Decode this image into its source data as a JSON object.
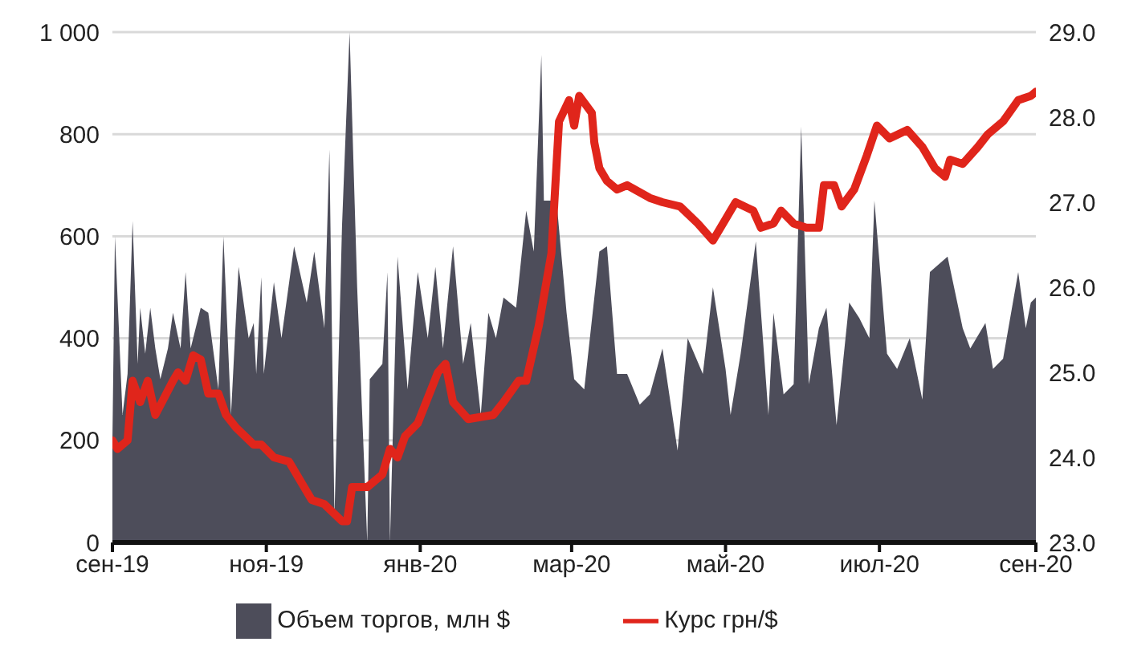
{
  "chart_data": {
    "type": "area",
    "xlim": [
      "2019-09-01",
      "2020-09-01"
    ],
    "xticks": [
      {
        "value": "2019-09-01",
        "label": "сен-19"
      },
      {
        "value": "2019-11-01",
        "label": "ноя-19"
      },
      {
        "value": "2020-01-01",
        "label": "янв-20"
      },
      {
        "value": "2020-03-01",
        "label": "мар-20"
      },
      {
        "value": "2020-05-01",
        "label": "май-20"
      },
      {
        "value": "2020-07-01",
        "label": "июл-20"
      },
      {
        "value": "2020-09-01",
        "label": "сен-20"
      }
    ],
    "ylim": [
      0,
      1000
    ],
    "yticks": [
      0,
      200,
      400,
      600,
      800,
      {
        "value": 1000,
        "label": "1 000"
      }
    ],
    "y2lim": [
      23,
      29
    ],
    "y2ticks": [
      {
        "value": 23,
        "label": "23.0"
      },
      {
        "value": 24,
        "label": "24.0"
      },
      {
        "value": 25,
        "label": "25.0"
      },
      {
        "value": 26,
        "label": "26.0"
      },
      {
        "value": 27,
        "label": "27.0"
      },
      {
        "value": 28,
        "label": "28.0"
      },
      {
        "value": 29,
        "label": "29.0"
      }
    ],
    "grid": "y",
    "legend": "bottom",
    "series": [
      {
        "name": "Объем торгов, млн $",
        "color": "#4d4d5a",
        "x": [
          "2019-09-01",
          "2019-09-02",
          "2019-09-05",
          "2019-09-07",
          "2019-09-09",
          "2019-09-11",
          "2019-09-12",
          "2019-09-14",
          "2019-09-16",
          "2019-09-18",
          "2019-09-20",
          "2019-09-23",
          "2019-09-25",
          "2019-09-28",
          "2019-09-30",
          "2019-10-02",
          "2019-10-06",
          "2019-10-09",
          "2019-10-13",
          "2019-10-15",
          "2019-10-18",
          "2019-10-21",
          "2019-10-25",
          "2019-10-27",
          "2019-10-28",
          "2019-10-30",
          "2019-10-31",
          "2019-11-04",
          "2019-11-07",
          "2019-11-12",
          "2019-11-17",
          "2019-11-20",
          "2019-11-24",
          "2019-11-26",
          "2019-11-28",
          "2019-12-01",
          "2019-12-04",
          "2019-12-07",
          "2019-12-11",
          "2019-12-12",
          "2019-12-17",
          "2019-12-19",
          "2019-12-20",
          "2019-12-23",
          "2019-12-27",
          "2019-12-31",
          "2020-01-04",
          "2020-01-07",
          "2020-01-10",
          "2020-01-14",
          "2020-01-18",
          "2020-01-21",
          "2020-01-25",
          "2020-01-28",
          "2020-01-31",
          "2020-02-03",
          "2020-02-08",
          "2020-02-12",
          "2020-02-15",
          "2020-02-18",
          "2020-02-19",
          "2020-02-24",
          "2020-02-28",
          "2020-03-02",
          "2020-03-06",
          "2020-03-12",
          "2020-03-15",
          "2020-03-19",
          "2020-03-23",
          "2020-03-28",
          "2020-04-01",
          "2020-04-06",
          "2020-04-12",
          "2020-04-16",
          "2020-04-22",
          "2020-04-26",
          "2020-05-01",
          "2020-05-03",
          "2020-05-07",
          "2020-05-13",
          "2020-05-18",
          "2020-05-20",
          "2020-05-24",
          "2020-05-28",
          "2020-05-31",
          "2020-06-03",
          "2020-06-07",
          "2020-06-10",
          "2020-06-14",
          "2020-06-19",
          "2020-06-23",
          "2020-06-27",
          "2020-06-29",
          "2020-07-04",
          "2020-07-08",
          "2020-07-13",
          "2020-07-18",
          "2020-07-21",
          "2020-07-28",
          "2020-08-03",
          "2020-08-06",
          "2020-08-12",
          "2020-08-15",
          "2020-08-19",
          "2020-08-25",
          "2020-08-28",
          "2020-08-30",
          "2020-09-01"
        ],
        "values": [
          200,
          600,
          250,
          330,
          630,
          350,
          460,
          370,
          460,
          380,
          320,
          380,
          450,
          380,
          530,
          380,
          460,
          450,
          300,
          600,
          250,
          540,
          400,
          430,
          330,
          520,
          330,
          510,
          400,
          580,
          470,
          570,
          420,
          770,
          50,
          620,
          1000,
          500,
          0,
          320,
          350,
          530,
          0,
          560,
          300,
          530,
          400,
          540,
          380,
          580,
          350,
          430,
          250,
          450,
          400,
          480,
          460,
          650,
          570,
          955,
          670,
          670,
          450,
          320,
          300,
          570,
          580,
          330,
          330,
          270,
          290,
          380,
          180,
          400,
          330,
          500,
          340,
          250,
          370,
          590,
          250,
          450,
          290,
          310,
          815,
          310,
          420,
          460,
          230,
          470,
          440,
          400,
          670,
          370,
          340,
          400,
          280,
          530,
          560,
          420,
          380,
          430,
          340,
          360,
          530,
          420,
          470,
          480
        ]
      },
      {
        "name": "Курс грн/$",
        "type": "line",
        "axis": "y2",
        "color": "#e0251b",
        "x": [
          "2019-09-01",
          "2019-09-03",
          "2019-09-07",
          "2019-09-09",
          "2019-09-12",
          "2019-09-15",
          "2019-09-18",
          "2019-09-25",
          "2019-09-27",
          "2019-09-30",
          "2019-10-03",
          "2019-10-06",
          "2019-10-09",
          "2019-10-13",
          "2019-10-16",
          "2019-10-20",
          "2019-10-27",
          "2019-10-30",
          "2019-11-04",
          "2019-11-10",
          "2019-11-13",
          "2019-11-19",
          "2019-11-24",
          "2019-12-01",
          "2019-12-03",
          "2019-12-05",
          "2019-12-11",
          "2019-12-17",
          "2019-12-20",
          "2019-12-23",
          "2019-12-26",
          "2019-12-31",
          "2020-01-08",
          "2020-01-11",
          "2020-01-14",
          "2020-01-20",
          "2020-01-30",
          "2020-02-03",
          "2020-02-09",
          "2020-02-12",
          "2020-02-17",
          "2020-02-22",
          "2020-02-25",
          "2020-02-29",
          "2020-03-02",
          "2020-03-04",
          "2020-03-09",
          "2020-03-10",
          "2020-03-12",
          "2020-03-15",
          "2020-03-19",
          "2020-03-23",
          "2020-04-01",
          "2020-04-06",
          "2020-04-13",
          "2020-04-20",
          "2020-04-26",
          "2020-05-01",
          "2020-05-05",
          "2020-05-12",
          "2020-05-15",
          "2020-05-20",
          "2020-05-23",
          "2020-05-28",
          "2020-06-02",
          "2020-06-07",
          "2020-06-09",
          "2020-06-13",
          "2020-06-16",
          "2020-06-21",
          "2020-06-26",
          "2020-06-30",
          "2020-07-05",
          "2020-07-12",
          "2020-07-18",
          "2020-07-23",
          "2020-07-27",
          "2020-07-29",
          "2020-08-03",
          "2020-08-09",
          "2020-08-13",
          "2020-08-19",
          "2020-08-25",
          "2020-08-30",
          "2020-09-01"
        ],
        "values": [
          24.2,
          24.1,
          24.2,
          24.9,
          24.65,
          24.9,
          24.5,
          24.9,
          25.0,
          24.9,
          25.2,
          25.15,
          24.75,
          24.75,
          24.5,
          24.35,
          24.15,
          24.15,
          24.0,
          23.95,
          23.8,
          23.5,
          23.45,
          23.25,
          23.25,
          23.65,
          23.65,
          23.8,
          24.1,
          24.0,
          24.25,
          24.4,
          25.0,
          25.1,
          24.65,
          24.45,
          24.5,
          24.65,
          24.9,
          24.9,
          25.55,
          26.4,
          27.95,
          28.2,
          27.9,
          28.25,
          28.05,
          27.7,
          27.4,
          27.25,
          27.15,
          27.2,
          27.05,
          27.0,
          26.95,
          26.75,
          26.55,
          26.8,
          27.0,
          26.9,
          26.7,
          26.75,
          26.9,
          26.75,
          26.7,
          26.7,
          27.2,
          27.2,
          26.95,
          27.15,
          27.55,
          27.9,
          27.75,
          27.85,
          27.65,
          27.4,
          27.3,
          27.5,
          27.45,
          27.65,
          27.8,
          27.95,
          28.2,
          28.25,
          28.3
        ]
      }
    ]
  }
}
